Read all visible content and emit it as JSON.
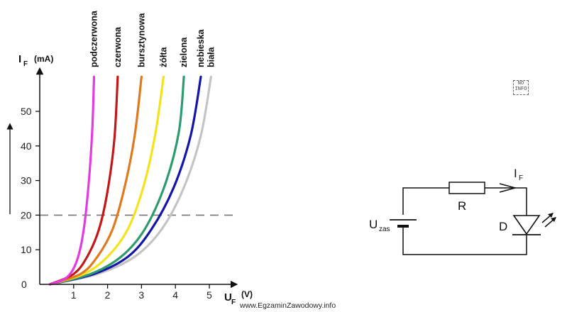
{
  "chart_data": {
    "type": "line",
    "y_axis": {
      "name": "I",
      "subscript": "F",
      "unit": "(mA)",
      "ticks": [
        "0",
        "10",
        "20",
        "30",
        "40",
        "50"
      ],
      "range": [
        0,
        60
      ]
    },
    "x_axis": {
      "name": "U",
      "subscript": "F",
      "unit": "(V)",
      "ticks": [
        "1",
        "2",
        "3",
        "4",
        "5"
      ],
      "range": [
        0,
        5.5
      ]
    },
    "grid": false,
    "reference_line": {
      "y": 20,
      "style": "dashed"
    },
    "series": [
      {
        "name": "podczerwona",
        "color": "#e23ce0",
        "points": [
          [
            0.3,
            0
          ],
          [
            0.8,
            2
          ],
          [
            1.1,
            7
          ],
          [
            1.3,
            16
          ],
          [
            1.45,
            30
          ],
          [
            1.55,
            45
          ],
          [
            1.6,
            60
          ]
        ]
      },
      {
        "name": "czerwona",
        "color": "#c11818",
        "points": [
          [
            0.3,
            0
          ],
          [
            1.0,
            3
          ],
          [
            1.4,
            8
          ],
          [
            1.75,
            16
          ],
          [
            2.0,
            27
          ],
          [
            2.2,
            42
          ],
          [
            2.3,
            60
          ]
        ]
      },
      {
        "name": "bursztynowa",
        "color": "#e07a1e",
        "points": [
          [
            0.3,
            0
          ],
          [
            1.2,
            3
          ],
          [
            1.7,
            8
          ],
          [
            2.15,
            16
          ],
          [
            2.5,
            28
          ],
          [
            2.8,
            43
          ],
          [
            3.0,
            60
          ]
        ]
      },
      {
        "name": "żółta",
        "color": "#f5e21c",
        "points": [
          [
            0.3,
            0
          ],
          [
            1.3,
            3
          ],
          [
            2.0,
            8
          ],
          [
            2.6,
            16
          ],
          [
            3.05,
            28
          ],
          [
            3.4,
            43
          ],
          [
            3.65,
            60
          ]
        ]
      },
      {
        "name": "zielona",
        "color": "#2e9a6e",
        "points": [
          [
            0.3,
            0
          ],
          [
            1.5,
            3
          ],
          [
            2.4,
            8
          ],
          [
            3.1,
            16
          ],
          [
            3.7,
            29
          ],
          [
            4.1,
            44
          ],
          [
            4.25,
            60
          ]
        ]
      },
      {
        "name": "nebieska",
        "color": "#1414a8",
        "points": [
          [
            0.3,
            0
          ],
          [
            1.6,
            3
          ],
          [
            2.6,
            8
          ],
          [
            3.3,
            16
          ],
          [
            3.95,
            28
          ],
          [
            4.45,
            43
          ],
          [
            4.75,
            60
          ]
        ]
      },
      {
        "name": "biała",
        "color": "#c4c4c4",
        "points": [
          [
            0.3,
            0
          ],
          [
            1.7,
            3
          ],
          [
            2.8,
            8
          ],
          [
            3.6,
            16
          ],
          [
            4.25,
            28
          ],
          [
            4.75,
            43
          ],
          [
            5.05,
            60
          ]
        ]
      }
    ]
  },
  "circuit": {
    "supply_label": "U",
    "supply_sub": "zas",
    "resistor_label": "R",
    "current_label": "I",
    "current_sub": "F",
    "diode_label": "D"
  },
  "noinfo_text": "NO INFO",
  "watermark": "www.EgzaminZawodowy.info"
}
